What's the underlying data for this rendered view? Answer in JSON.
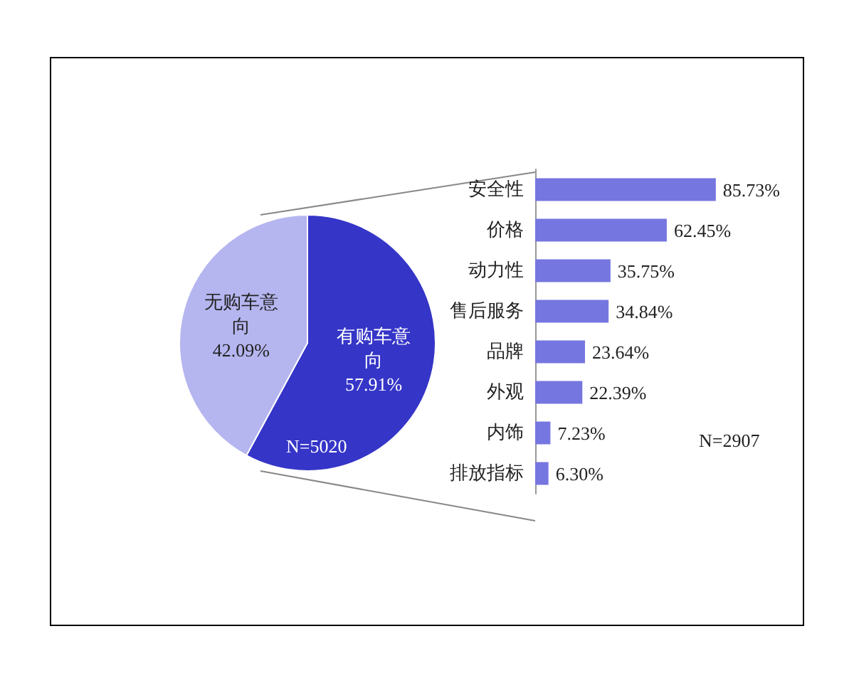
{
  "chart_data": [
    {
      "type": "pie",
      "categories": [
        "有购车意向",
        "无购车意向"
      ],
      "values": [
        57.91,
        42.09
      ],
      "colors": [
        "#3535c8",
        "#b5b5f0"
      ],
      "value_labels": [
        "57.91%",
        "42.09%"
      ],
      "annotations": [
        "N=5020"
      ]
    },
    {
      "type": "bar",
      "orientation": "horizontal",
      "categories": [
        "安全性",
        "价格",
        "动力性",
        "售后服务",
        "品牌",
        "外观",
        "内饰",
        "排放指标"
      ],
      "values": [
        85.73,
        62.45,
        35.75,
        34.84,
        23.64,
        22.39,
        7.23,
        6.3
      ],
      "value_labels": [
        "85.73%",
        "62.45%",
        "35.75%",
        "34.84%",
        "23.64%",
        "22.39%",
        "7.23%",
        "6.30%"
      ],
      "color": "#7676e0",
      "annotations": [
        "N=2907"
      ]
    }
  ]
}
